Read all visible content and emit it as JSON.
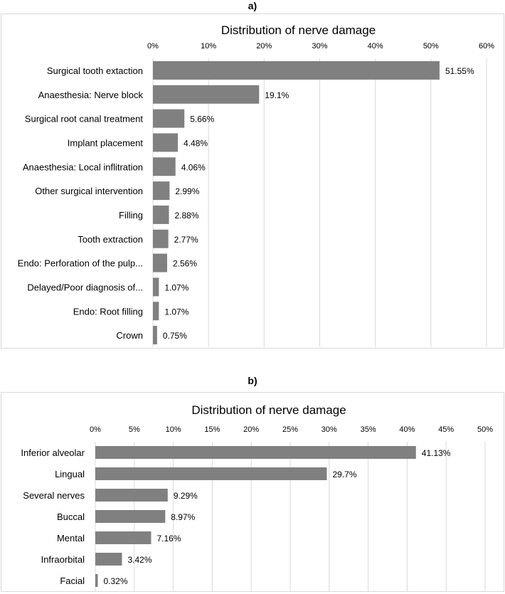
{
  "panels": {
    "a": {
      "label": "a)"
    },
    "b": {
      "label": "b)"
    }
  },
  "chart_data": [
    {
      "id": "a",
      "type": "bar",
      "orientation": "horizontal",
      "title": "Distribution of nerve damage",
      "xlim": [
        0,
        60
      ],
      "tick_step": 10,
      "tick_labels": [
        "0%",
        "10%",
        "20%",
        "30%",
        "40%",
        "50%",
        "60%"
      ],
      "categories": [
        "Surgical tooth extaction",
        "Anaesthesia: Nerve block",
        "Surgical root canal treatment",
        "Implant placement",
        "Anaesthesia: Local inflitration",
        "Other surgical intervention",
        "Filling",
        "Tooth extraction",
        "Endo: Perforation of the pulp...",
        "Delayed/Poor diagnosis of...",
        "Endo: Root filling",
        "Crown"
      ],
      "values": [
        51.55,
        19.1,
        5.66,
        4.48,
        4.06,
        2.99,
        2.88,
        2.77,
        2.56,
        1.07,
        1.07,
        0.75
      ],
      "data_labels": [
        "51.55%",
        "19.1%",
        "5.66%",
        "4.48%",
        "4.06%",
        "2.99%",
        "2.88%",
        "2.77%",
        "2.56%",
        "1.07%",
        "1.07%",
        "0.75%"
      ],
      "grid": true,
      "color": "#808080"
    },
    {
      "id": "b",
      "type": "bar",
      "orientation": "horizontal",
      "title": "Distribution of nerve damage",
      "xlim": [
        0,
        50
      ],
      "tick_step": 5,
      "tick_labels": [
        "0%",
        "5%",
        "10%",
        "15%",
        "20%",
        "25%",
        "30%",
        "35%",
        "40%",
        "45%",
        "50%"
      ],
      "categories": [
        "Inferior alveolar",
        "Lingual",
        "Several nerves",
        "Buccal",
        "Mental",
        "Infraorbital",
        "Facial"
      ],
      "values": [
        41.13,
        29.7,
        9.29,
        8.97,
        7.16,
        3.42,
        0.32
      ],
      "data_labels": [
        "41.13%",
        "29.7%",
        "9.29%",
        "8.97%",
        "7.16%",
        "3.42%",
        "0.32%"
      ],
      "grid": true,
      "color": "#808080"
    }
  ]
}
